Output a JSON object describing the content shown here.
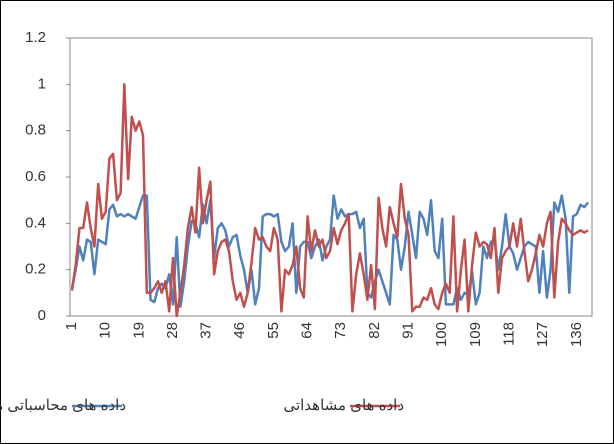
{
  "chart_data": {
    "type": "line",
    "categories": [
      1,
      null,
      null,
      null,
      null,
      null,
      null,
      null,
      null,
      10,
      null,
      null,
      null,
      null,
      null,
      null,
      null,
      null,
      19,
      null,
      null,
      null,
      null,
      null,
      null,
      null,
      null,
      28,
      null,
      null,
      null,
      null,
      null,
      null,
      null,
      null,
      37,
      null,
      null,
      null,
      null,
      null,
      null,
      null,
      null,
      46,
      null,
      null,
      null,
      null,
      null,
      null,
      null,
      null,
      55,
      null,
      null,
      null,
      null,
      null,
      null,
      null,
      null,
      64,
      null,
      null,
      null,
      null,
      null,
      null,
      null,
      null,
      73,
      null,
      null,
      null,
      null,
      null,
      null,
      null,
      null,
      82,
      null,
      null,
      null,
      null,
      null,
      null,
      null,
      null,
      91,
      null,
      null,
      null,
      null,
      null,
      null,
      null,
      null,
      100,
      null,
      null,
      null,
      null,
      null,
      null,
      null,
      null,
      109,
      null,
      null,
      null,
      null,
      null,
      null,
      null,
      null,
      118,
      null,
      null,
      null,
      null,
      null,
      null,
      null,
      null,
      127,
      null,
      null,
      null,
      null,
      null,
      null,
      null,
      null,
      136,
      null,
      null,
      null
    ],
    "series": [
      {
        "name": "داده های محاسباتی مدل",
        "color": "#4f81bd",
        "values": [
          0.12,
          0.2,
          0.3,
          0.24,
          0.33,
          0.32,
          0.18,
          0.33,
          0.32,
          0.31,
          0.46,
          0.48,
          0.43,
          0.44,
          0.43,
          0.44,
          0.43,
          0.42,
          0.47,
          0.52,
          0.52,
          0.07,
          0.06,
          0.12,
          0.14,
          0.12,
          0.18,
          0.05,
          0.34,
          0.04,
          0.15,
          0.3,
          0.41,
          0.4,
          0.34,
          0.48,
          0.4,
          0.5,
          0.25,
          0.38,
          0.4,
          0.37,
          0.3,
          0.34,
          0.35,
          0.26,
          0.2,
          0.1,
          0.2,
          0.05,
          0.12,
          0.43,
          0.44,
          0.44,
          0.43,
          0.44,
          0.32,
          0.28,
          0.3,
          0.4,
          0.1,
          0.3,
          0.32,
          0.32,
          0.25,
          0.3,
          0.33,
          0.24,
          0.3,
          0.33,
          0.52,
          0.42,
          0.46,
          0.43,
          0.44,
          0.44,
          0.45,
          0.38,
          0.42,
          0.1,
          0.08,
          0.15,
          0.2,
          0.15,
          0.1,
          0.05,
          0.35,
          0.33,
          0.2,
          0.3,
          0.45,
          0.35,
          0.25,
          0.45,
          0.42,
          0.35,
          0.5,
          0.28,
          0.25,
          0.42,
          0.05,
          0.05,
          0.05,
          0.12,
          0.07,
          0.1,
          0.09,
          0.19,
          0.05,
          0.1,
          0.3,
          0.25,
          0.32,
          0.33,
          0.2,
          0.3,
          0.44,
          0.3,
          0.27,
          0.2,
          0.25,
          0.3,
          0.32,
          0.31,
          0.3,
          0.1,
          0.28,
          0.08,
          0.2,
          0.49,
          0.45,
          0.52,
          0.42,
          0.1,
          0.43,
          0.44,
          0.48,
          0.47,
          0.49
        ]
      },
      {
        "name": "داده های مشاهداتی",
        "color": "#c0504d",
        "values": [
          0.11,
          0.22,
          0.38,
          0.38,
          0.49,
          0.38,
          0.3,
          0.57,
          0.42,
          0.45,
          0.68,
          0.7,
          0.5,
          0.53,
          1.0,
          0.59,
          0.86,
          0.8,
          0.84,
          0.78,
          0.1,
          0.1,
          0.12,
          0.15,
          0.1,
          0.15,
          0.02,
          0.25,
          0.0,
          0.1,
          0.22,
          0.38,
          0.47,
          0.36,
          0.64,
          0.4,
          0.5,
          0.58,
          0.18,
          0.28,
          0.32,
          0.33,
          0.28,
          0.15,
          0.07,
          0.1,
          0.04,
          0.1,
          0.23,
          0.38,
          0.33,
          0.34,
          0.3,
          0.28,
          0.38,
          0.33,
          0.02,
          0.2,
          0.18,
          0.22,
          0.3,
          0.12,
          0.08,
          0.43,
          0.28,
          0.37,
          0.3,
          0.33,
          0.25,
          0.28,
          0.38,
          0.31,
          0.37,
          0.4,
          0.44,
          0.02,
          0.18,
          0.27,
          0.18,
          0.07,
          0.22,
          0.03,
          0.51,
          0.38,
          0.3,
          0.47,
          0.4,
          0.34,
          0.57,
          0.42,
          0.35,
          0.02,
          0.04,
          0.04,
          0.08,
          0.07,
          0.12,
          0.05,
          0.03,
          0.1,
          0.14,
          0.1,
          0.43,
          0.02,
          0.2,
          0.33,
          0.02,
          0.22,
          0.36,
          0.3,
          0.32,
          0.31,
          0.25,
          0.38,
          0.1,
          0.25,
          0.28,
          0.3,
          0.4,
          0.3,
          0.42,
          0.28,
          0.15,
          0.2,
          0.27,
          0.35,
          0.3,
          0.4,
          0.45,
          0.08,
          0.32,
          0.42,
          0.4,
          0.37,
          0.35,
          0.36,
          0.37,
          0.36,
          0.37
        ]
      }
    ],
    "ylim": [
      0,
      1.2
    ],
    "yticks": [
      0,
      0.2,
      0.4,
      0.6,
      0.8,
      1,
      1.2
    ],
    "grid": false,
    "legend": "bottom"
  }
}
